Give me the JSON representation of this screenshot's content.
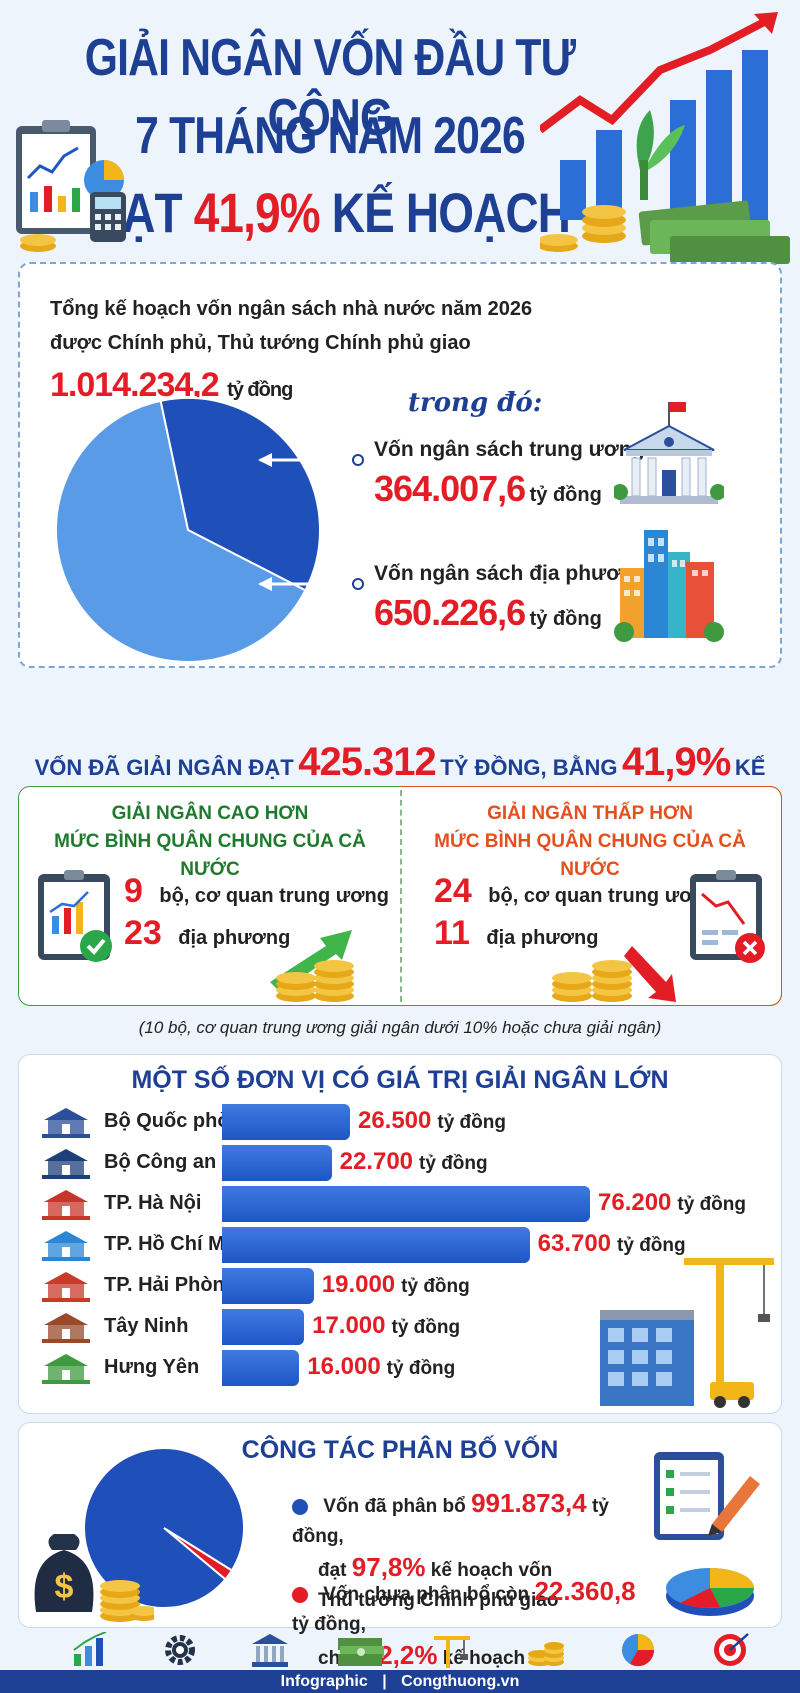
{
  "header": {
    "line1": "GIẢI NGÂN VỐN ĐẦU TƯ CÔNG",
    "line2": "7 THÁNG NĂM 2026",
    "line3_prefix": "ĐẠT",
    "line3_highlight": "41,9%",
    "line3_suffix": "KẾ HOẠCH"
  },
  "plan": {
    "intro_line1": "Tổng kế hoạch vốn ngân sách nhà nước năm 2026",
    "intro_line2": "được Chính phủ, Thủ tướng Chính phủ giao",
    "total": "1.014.234,2",
    "unit": "tỷ đồng",
    "trong_do": "trong đó:",
    "central_label": "Vốn ngân sách trung ương",
    "central_value": "364.007,6",
    "local_label": "Vốn ngân sách địa phương",
    "local_value": "650.226,6",
    "pie": [
      {
        "name": "Vốn ngân sách trung ương",
        "value": 364007.6,
        "color": "#1f4fb8"
      },
      {
        "name": "Vốn ngân sách địa phương",
        "value": 650226.6,
        "color": "#5a9be8"
      }
    ]
  },
  "summary": {
    "prefix": "VỐN ĐÃ GIẢI NGÂN ĐẠT",
    "amount": "425.312",
    "middle": "TỶ ĐỒNG, BẰNG",
    "percent": "41,9%",
    "suffix": "KẾ HOẠCH"
  },
  "higher": {
    "title1": "GIẢI NGÂN CAO HƠN",
    "title2": "MỨC BÌNH QUÂN CHUNG CỦA CẢ NƯỚC",
    "n1": "9",
    "t1": "bộ, cơ quan trung ương",
    "n2": "23",
    "t2": "địa phương",
    "color": "#1f7a2e"
  },
  "lower": {
    "title1": "GIẢI NGÂN THẤP HƠN",
    "title2": "MỨC BÌNH QUÂN CHUNG CỦA CẢ NƯỚC",
    "n1": "24",
    "t1": "bộ, cơ quan trung ương",
    "n2": "11",
    "t2": "địa phương",
    "color": "#e3501d"
  },
  "note": "(10 bộ, cơ quan trung ương giải ngân dưới 10% hoặc chưa giải ngân)",
  "chart_data": {
    "type": "bar",
    "orientation": "horizontal",
    "title": "MỘT SỐ ĐƠN VỊ CÓ GIÁ TRỊ GIẢI NGÂN LỚN",
    "categories": [
      "Bộ Quốc phòng",
      "Bộ Công an",
      "TP. Hà Nội",
      "TP. Hồ Chí Minh",
      "TP. Hải Phòng",
      "Tây Ninh",
      "Hưng Yên"
    ],
    "values": [
      26500,
      22700,
      76200,
      63700,
      19000,
      17000,
      16000
    ],
    "labels": [
      "26.500",
      "22.700",
      "76.200",
      "63.700",
      "19.000",
      "17.000",
      "16.000"
    ],
    "unit": "tỷ đồng",
    "xlim": [
      0,
      76200
    ]
  },
  "allocation": {
    "title": "CÔNG TÁC PHÂN BỐ VỐN",
    "a_prefix": "Vốn đã phân bổ",
    "a_value": "991.873,4",
    "a_unit": "tỷ đồng,",
    "a_line2_prefix": "đạt",
    "a_percent": "97,8%",
    "a_line2_suffix": "kế hoạch vốn",
    "a_line3": "Thủ tướng Chính phủ giao",
    "b_prefix": "Vốn chưa phân bổ còn",
    "b_value": "22.360,8",
    "b_unit": "tỷ đồng,",
    "b_line2_prefix": "chiếm",
    "b_percent": "2,2%",
    "b_line2_suffix": "kế hoạch",
    "pie": [
      {
        "name": "Vốn đã phân bổ",
        "value": 97.8,
        "color": "#1f4fb8"
      },
      {
        "name": "Vốn chưa phân bổ",
        "value": 2.2,
        "color": "#e31d25"
      }
    ]
  },
  "footer": {
    "left": "Infographic",
    "sep": "|",
    "right": "Congthuong.vn"
  }
}
